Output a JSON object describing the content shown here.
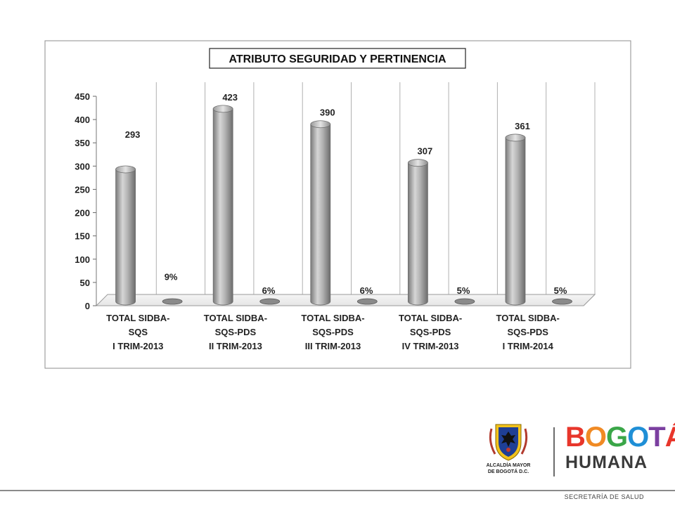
{
  "chart_data": {
    "type": "bar",
    "title": "ATRIBUTO SEGURIDAD Y PERTINENCIA",
    "categories": [
      [
        "TOTAL SIDBA-",
        "SQS",
        "I TRIM-2013"
      ],
      [
        "TOTAL SIDBA-",
        "SQS-PDS",
        "II TRIM-2013"
      ],
      [
        "TOTAL SIDBA-",
        "SQS-PDS",
        "III TRIM-2013"
      ],
      [
        "TOTAL SIDBA-",
        "SQS-PDS",
        "IV TRIM-2013"
      ],
      [
        "TOTAL SIDBA-",
        "SQS-PDS",
        "I TRIM-2014"
      ]
    ],
    "series": [
      {
        "values": [
          293,
          423,
          390,
          307,
          361
        ],
        "labels": [
          "293",
          "423",
          "390",
          "307",
          "361"
        ]
      },
      {
        "values": [
          0.09,
          0.06,
          0.06,
          0.05,
          0.05
        ],
        "labels": [
          "9%",
          "6%",
          "6%",
          "5%",
          "5%"
        ]
      }
    ],
    "ylim": [
      0,
      450
    ],
    "yticks": [
      "0",
      "50",
      "100",
      "150",
      "200",
      "250",
      "300",
      "350",
      "400",
      "450"
    ],
    "grid": true,
    "bar_color": "#a9a9a9"
  },
  "footer": {
    "alcaldia_line1": "ALCALDÍA MAYOR",
    "alcaldia_line2": "DE BOGOTÁ D.C.",
    "brand_top": "BOGOTÁ",
    "brand_bottom": "HUMANA",
    "secretaria": "SECRETARÍA DE SALUD"
  }
}
